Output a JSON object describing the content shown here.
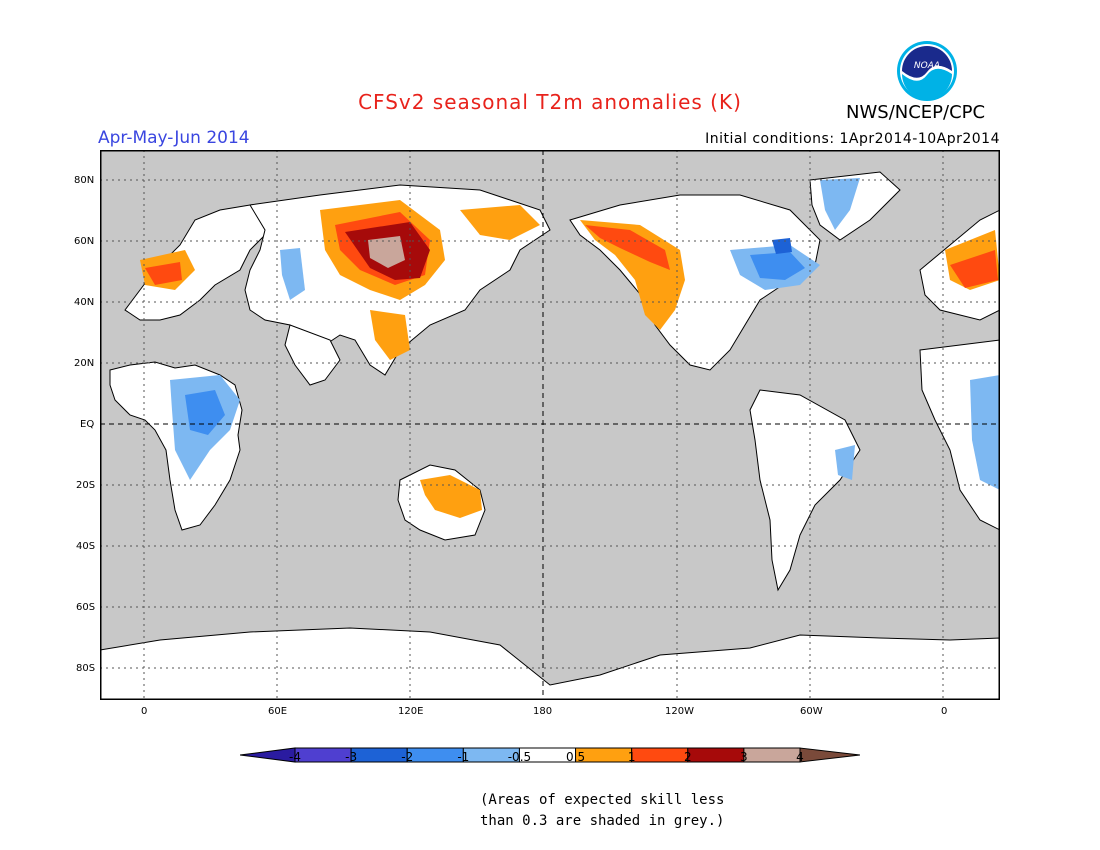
{
  "title": "CFSv2 seasonal T2m anomalies (K)",
  "period": "Apr-May-Jun 2014",
  "agency": "NWS/NCEP/CPC",
  "initial_conditions": "Initial conditions: 1Apr2014-10Apr2014",
  "logo_text": "NOAA",
  "lat_labels": [
    "80N",
    "60N",
    "40N",
    "20N",
    "EQ",
    "20S",
    "40S",
    "60S",
    "80S"
  ],
  "lon_labels": [
    "0",
    "60E",
    "120E",
    "180",
    "120W",
    "60W",
    "0"
  ],
  "legend": {
    "labels": [
      "-4",
      "-3",
      "-2",
      "-1",
      "-0.5",
      "0.5",
      "1",
      "2",
      "3",
      "4"
    ],
    "colors": [
      "#2a1ba0",
      "#4f3fd0",
      "#1d62d6",
      "#3e8ef0",
      "#7db8f2",
      "#ffffff",
      "#ffa010",
      "#ff4a10",
      "#a60a0a",
      "#c9a69b",
      "#7a4a3a"
    ]
  },
  "note_lines": [
    "(Areas of expected skill less",
    "than 0.3 are shaded in grey.)"
  ],
  "colors": {
    "title": "#e8231c",
    "period": "#3a46e0",
    "skill_grey": "#c8c8c8"
  }
}
